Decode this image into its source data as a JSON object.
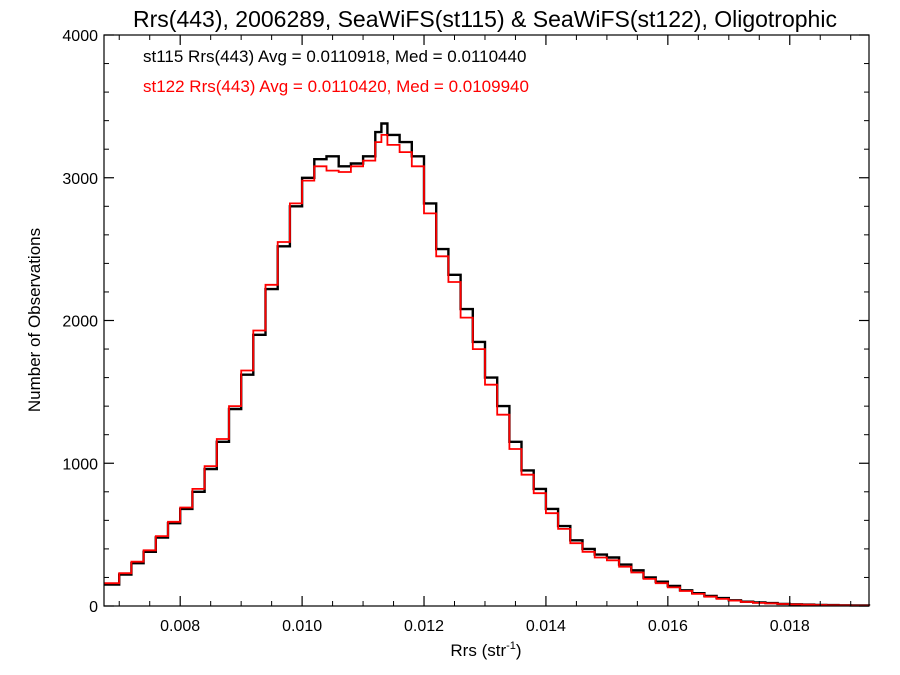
{
  "chart_data": {
    "type": "line",
    "title": "Rrs(443), 2006289, SeaWiFS(st115) & SeaWiFS(st122), Oligotrophic",
    "xlabel": "Rrs (str",
    "xlabel_sup": "-1",
    "xlabel_end": ")",
    "ylabel": "Number of Observations",
    "xlim": [
      0.00675,
      0.0193
    ],
    "ylim": [
      0,
      4000
    ],
    "x_ticks": [
      0.008,
      0.01,
      0.012,
      0.014,
      0.016,
      0.018
    ],
    "x_tick_labels": [
      "0.008",
      "0.010",
      "0.012",
      "0.014",
      "0.016",
      "0.018"
    ],
    "y_ticks": [
      0,
      1000,
      2000,
      3000,
      4000
    ],
    "y_tick_labels": [
      "0",
      "1000",
      "2000",
      "3000",
      "4000"
    ],
    "grid": false,
    "annotations": [
      {
        "text": "st115 Rrs(443) Avg = 0.0110918, Med = 0.0110440",
        "color": "#000000"
      },
      {
        "text": "st122 Rrs(443) Avg = 0.0110420, Med = 0.0109940",
        "color": "#ff0000"
      }
    ],
    "series": [
      {
        "color": "#000000",
        "x": [
          0.00675,
          0.007,
          0.0072,
          0.0074,
          0.0076,
          0.0078,
          0.008,
          0.0082,
          0.0084,
          0.0086,
          0.0088,
          0.009,
          0.0092,
          0.0094,
          0.0096,
          0.0098,
          0.01,
          0.0102,
          0.0104,
          0.0106,
          0.0108,
          0.011,
          0.0112,
          0.0113,
          0.0114,
          0.0116,
          0.0118,
          0.012,
          0.0122,
          0.0124,
          0.0126,
          0.0128,
          0.013,
          0.0132,
          0.0134,
          0.0136,
          0.0138,
          0.014,
          0.0142,
          0.0144,
          0.0146,
          0.0148,
          0.015,
          0.0152,
          0.0154,
          0.0156,
          0.0158,
          0.016,
          0.0162,
          0.0164,
          0.0166,
          0.0168,
          0.017,
          0.0172,
          0.0174,
          0.0176,
          0.0178,
          0.018,
          0.0182,
          0.0184,
          0.0186,
          0.0188,
          0.019,
          0.0193
        ],
        "y": [
          150,
          220,
          300,
          380,
          480,
          580,
          680,
          800,
          960,
          1150,
          1380,
          1620,
          1900,
          2220,
          2520,
          2800,
          3000,
          3130,
          3150,
          3080,
          3100,
          3150,
          3320,
          3380,
          3300,
          3250,
          3150,
          2820,
          2500,
          2320,
          2080,
          1850,
          1600,
          1400,
          1150,
          950,
          820,
          680,
          560,
          460,
          400,
          360,
          340,
          290,
          250,
          200,
          170,
          140,
          110,
          90,
          70,
          55,
          40,
          30,
          25,
          20,
          15,
          12,
          10,
          8,
          6,
          5,
          4,
          3
        ]
      },
      {
        "color": "#ff0000",
        "x": [
          0.00675,
          0.007,
          0.0072,
          0.0074,
          0.0076,
          0.0078,
          0.008,
          0.0082,
          0.0084,
          0.0086,
          0.0088,
          0.009,
          0.0092,
          0.0094,
          0.0096,
          0.0098,
          0.01,
          0.0102,
          0.0104,
          0.0106,
          0.0108,
          0.011,
          0.0112,
          0.0113,
          0.0114,
          0.0116,
          0.0118,
          0.012,
          0.0122,
          0.0124,
          0.0126,
          0.0128,
          0.013,
          0.0132,
          0.0134,
          0.0136,
          0.0138,
          0.014,
          0.0142,
          0.0144,
          0.0146,
          0.0148,
          0.015,
          0.0152,
          0.0154,
          0.0156,
          0.0158,
          0.016,
          0.0162,
          0.0164,
          0.0166,
          0.0168,
          0.017,
          0.0172,
          0.0174,
          0.0176,
          0.0178,
          0.018,
          0.0182,
          0.0184,
          0.0186,
          0.0188,
          0.019,
          0.0193
        ],
        "y": [
          160,
          230,
          310,
          390,
          490,
          590,
          690,
          820,
          980,
          1170,
          1400,
          1650,
          1930,
          2250,
          2550,
          2820,
          2980,
          3080,
          3050,
          3040,
          3080,
          3120,
          3250,
          3300,
          3230,
          3180,
          3080,
          2750,
          2450,
          2270,
          2020,
          1800,
          1550,
          1340,
          1100,
          920,
          790,
          650,
          540,
          440,
          380,
          340,
          320,
          275,
          235,
          190,
          160,
          130,
          105,
          85,
          65,
          50,
          38,
          28,
          22,
          18,
          14,
          11,
          9,
          7,
          5,
          4,
          3,
          2
        ]
      }
    ]
  }
}
